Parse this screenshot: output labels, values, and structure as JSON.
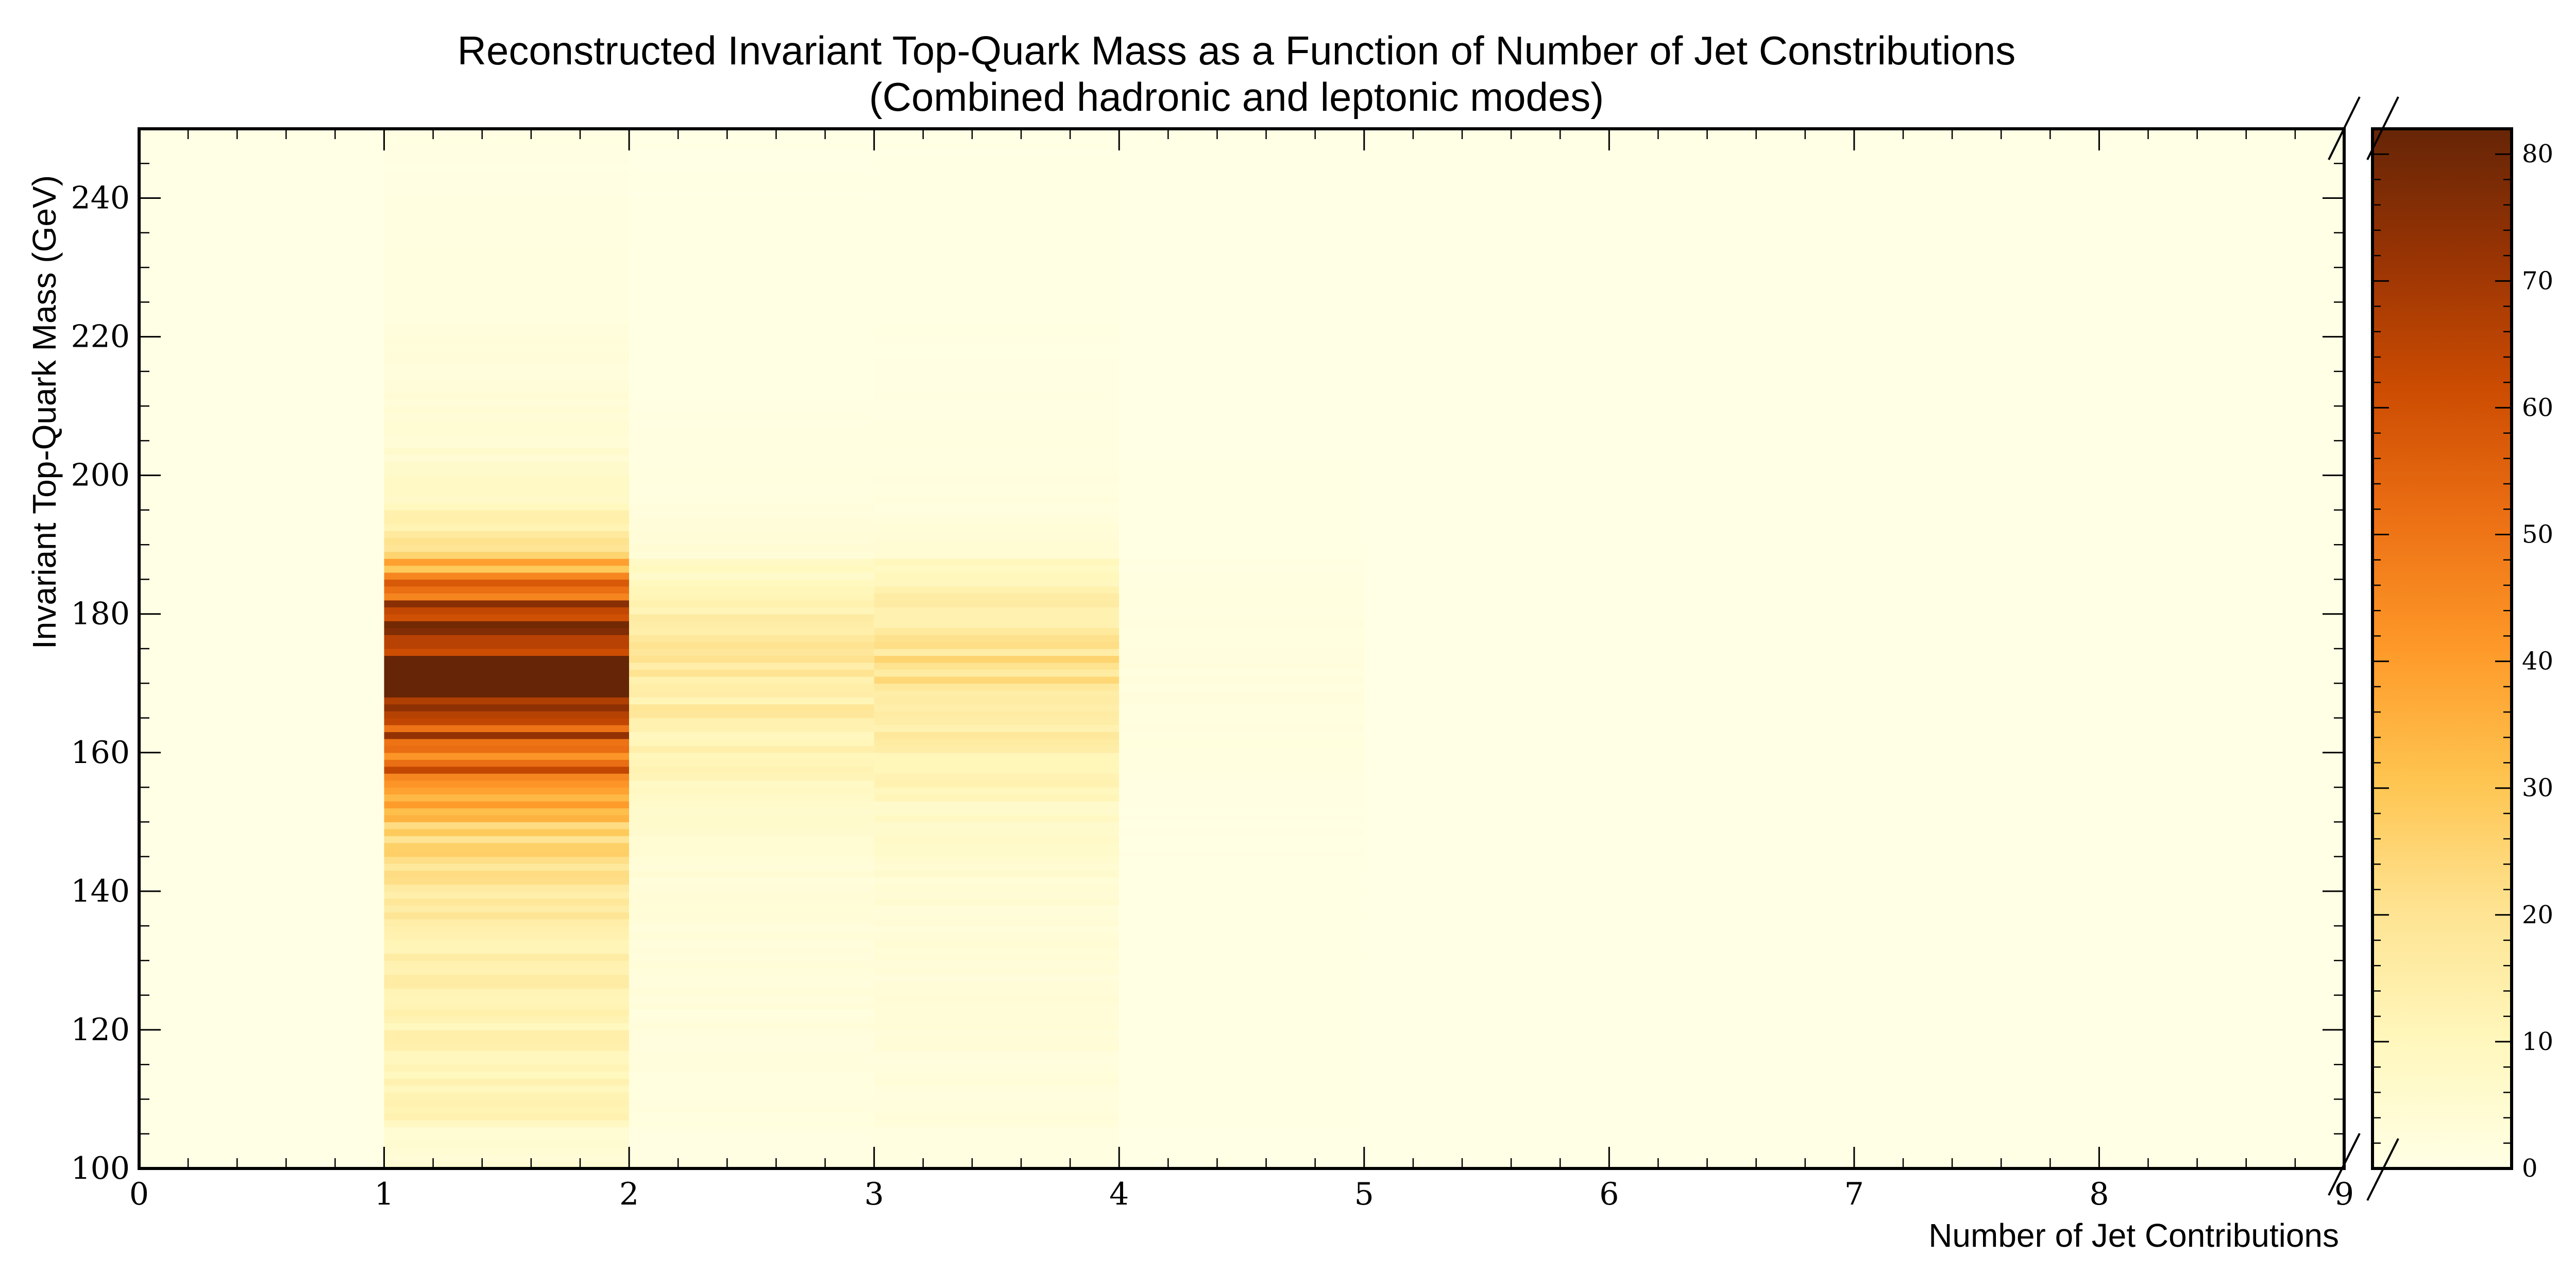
{
  "chart_data": {
    "type": "heatmap",
    "title": "Reconstructed Invariant Top-Quark Mass as a Function of Number of Jet Constributions",
    "subtitle": "(Combined hadronic and leptonic modes)",
    "xlabel": "Number of Jet Contributions",
    "ylabel": "Invariant Top-Quark Mass (GeV)",
    "xlim": [
      0,
      9
    ],
    "ylim": [
      100,
      250
    ],
    "x_ticks": [
      "0",
      "1",
      "2",
      "3",
      "4",
      "5",
      "6",
      "7",
      "8",
      "9"
    ],
    "y_ticks": [
      "100",
      "120",
      "140",
      "160",
      "180",
      "200",
      "220",
      "240"
    ],
    "colorbar": {
      "range": [
        0,
        82
      ],
      "ticks": [
        "0",
        "10",
        "20",
        "30",
        "40",
        "50",
        "60",
        "70",
        "80"
      ],
      "colormap": [
        "#ffffe5",
        "#fff7bc",
        "#fee391",
        "#fec44f",
        "#fe9929",
        "#ec7014",
        "#cc4c02",
        "#993404",
        "#662506"
      ]
    },
    "x_bins": [
      {
        "x": [
          0,
          1
        ],
        "peak": 0
      },
      {
        "x": [
          1,
          2
        ],
        "peak": 82
      },
      {
        "x": [
          2,
          3
        ],
        "peak": 16
      },
      {
        "x": [
          3,
          4
        ],
        "peak": 20
      },
      {
        "x": [
          4,
          5
        ],
        "peak": 2
      },
      {
        "x": [
          5,
          6
        ],
        "peak": 0
      },
      {
        "x": [
          6,
          7
        ],
        "peak": 0
      },
      {
        "x": [
          7,
          8
        ],
        "peak": 0
      },
      {
        "x": [
          8,
          9
        ],
        "peak": 0
      }
    ]
  }
}
